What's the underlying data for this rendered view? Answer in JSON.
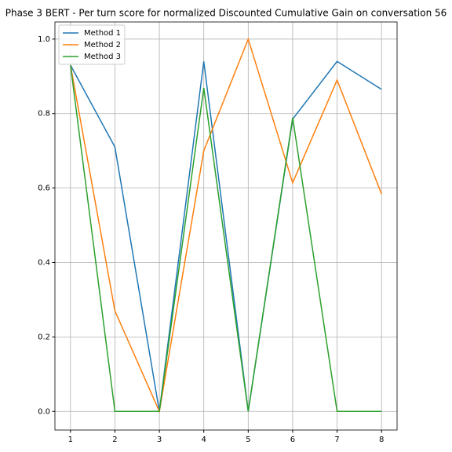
{
  "chart_data": {
    "type": "line",
    "title": "Phase 3 BERT - Per turn score for normalized Discounted Cumulative Gain on conversation 56",
    "x": [
      1,
      2,
      3,
      4,
      5,
      6,
      7,
      8
    ],
    "series": [
      {
        "name": "Method 1",
        "color": "#1f77b4",
        "values": [
          0.93,
          0.71,
          0.0,
          0.94,
          0.0,
          0.785,
          0.94,
          0.865
        ]
      },
      {
        "name": "Method 2",
        "color": "#ff7f0e",
        "values": [
          0.93,
          0.27,
          0.0,
          0.7,
          1.0,
          0.614,
          0.89,
          0.584
        ]
      },
      {
        "name": "Method 3",
        "color": "#2ca02c",
        "values": [
          0.93,
          0.0,
          0.0,
          0.869,
          0.0,
          0.789,
          0.0,
          0.0
        ]
      }
    ],
    "xlim": [
      0.65,
      8.35
    ],
    "ylim": [
      -0.05,
      1.046
    ],
    "xticks": [
      1,
      2,
      3,
      4,
      5,
      6,
      7,
      8
    ],
    "yticks": [
      {
        "value": 0,
        "label": "0.0"
      },
      0.2,
      0.4,
      0.6,
      0.8,
      {
        "value": 1,
        "label": "1.0"
      }
    ],
    "grid": true,
    "legend": "upper-left"
  }
}
